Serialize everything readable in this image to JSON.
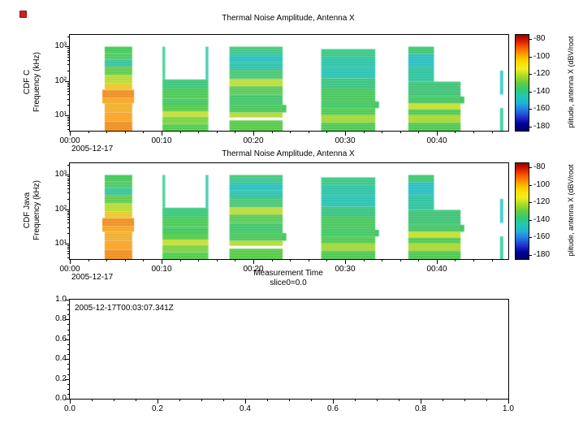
{
  "figure": {
    "background": "#ffffff",
    "marker_color": "#cc2222"
  },
  "chart_data": [
    {
      "type": "heatmap",
      "title": "Thermal Noise Amplitude, Antenna X",
      "panel_label": "CDF C",
      "ylabel": "Frequency (kHz)",
      "x_start_date": "2005-12-17",
      "time_range_min": [
        0,
        47.8
      ],
      "x_ticks": [
        {
          "t": 0,
          "label": "00:00"
        },
        {
          "t": 10,
          "label": "00:10"
        },
        {
          "t": 20,
          "label": "00:20"
        },
        {
          "t": 30,
          "label": "00:30"
        },
        {
          "t": 40,
          "label": "00:40"
        }
      ],
      "freq_range_khz": [
        3.5,
        2200
      ],
      "y_scale": "log",
      "y_ticks": [
        {
          "f": 1000,
          "label": "10³"
        },
        {
          "f": 100,
          "label": "10²"
        },
        {
          "f": 10,
          "label": "10¹"
        }
      ],
      "colorbar": {
        "label": "plitude, antenna X (dBV/root",
        "ticks": [
          -80,
          -100,
          -120,
          -140,
          -160,
          -180
        ],
        "range": [
          -75,
          -185
        ],
        "gradient": [
          "#990000",
          "#dd2200",
          "#ff6600",
          "#ffaa00",
          "#ffdd00",
          "#eeee22",
          "#aadd22",
          "#66cc44",
          "#33c878",
          "#22c8b0",
          "#22b0d8",
          "#2277e6",
          "#2233cc",
          "#000099",
          "#000066"
        ]
      },
      "bursts": [
        {
          "t": [
            3.8,
            6.8
          ],
          "bands": [
            {
              "f": [
                3.5,
                6.5
              ],
              "color": "#f09020"
            },
            {
              "f": [
                6.5,
                12
              ],
              "color": "#f8a428"
            },
            {
              "f": [
                12,
                22
              ],
              "color": "#f0b030"
            },
            {
              "f": [
                22,
                32
              ],
              "t": [
                3.55,
                7.0
              ],
              "color": "#f8a820"
            },
            {
              "f": [
                32,
                55
              ],
              "t": [
                3.55,
                7.0
              ],
              "color": "#f09028"
            },
            {
              "f": [
                55,
                85
              ],
              "color": "#ecc82c"
            },
            {
              "f": [
                85,
                150
              ],
              "color": "#b8dc34"
            },
            {
              "f": [
                150,
                260
              ],
              "color": "#64cc50"
            },
            {
              "f": [
                260,
                420
              ],
              "color": "#38c49c"
            },
            {
              "f": [
                420,
                640
              ],
              "color": "#4ccc64"
            },
            {
              "f": [
                640,
                1000
              ],
              "color": "#44c858"
            }
          ]
        },
        {
          "t": [
            10.1,
            15.1
          ],
          "bands": [
            {
              "f": [
                3.5,
                5.5
              ],
              "color": "#54cc50"
            },
            {
              "f": [
                5.5,
                9
              ],
              "color": "#7cd444"
            },
            {
              "f": [
                9,
                13
              ],
              "color": "#c4e034"
            },
            {
              "f": [
                13,
                19
              ],
              "color": "#58cc4c"
            },
            {
              "f": [
                19,
                30
              ],
              "color": "#44c860"
            },
            {
              "f": [
                30,
                60
              ],
              "color": "#4ccc58"
            },
            {
              "f": [
                60,
                110
              ],
              "color": "#3cc87c"
            },
            {
              "f": [
                110,
                1000
              ],
              "t": [
                10.1,
                10.4
              ],
              "color": "#4cd09c"
            },
            {
              "f": [
                110,
                1000
              ],
              "t": [
                14.8,
                15.1
              ],
              "color": "#40ccac"
            }
          ]
        },
        {
          "t": [
            17.4,
            23.2
          ],
          "bands": [
            {
              "f": [
                3.5,
                7
              ],
              "color": "#58cc48"
            },
            {
              "f": [
                8.5,
                12
              ],
              "color": "#b4dc38"
            },
            {
              "f": [
                12,
                20
              ],
              "t": [
                17.4,
                23.6
              ],
              "color": "#4cc85c"
            },
            {
              "f": [
                20,
                40
              ],
              "color": "#44c86c"
            },
            {
              "f": [
                40,
                70
              ],
              "color": "#5ccc58"
            },
            {
              "f": [
                70,
                115
              ],
              "color": "#bcdc40"
            },
            {
              "f": [
                115,
                210
              ],
              "color": "#4cc878"
            },
            {
              "f": [
                210,
                360
              ],
              "color": "#30c4ac"
            },
            {
              "f": [
                360,
                560
              ],
              "color": "#2cc0c0"
            },
            {
              "f": [
                560,
                820
              ],
              "color": "#3cc894"
            },
            {
              "f": [
                820,
                1000
              ],
              "color": "#4cc870"
            }
          ]
        },
        {
          "t": [
            27.4,
            33.3
          ],
          "bands": [
            {
              "f": [
                3.5,
                6
              ],
              "color": "#50c854"
            },
            {
              "f": [
                6,
                10
              ],
              "color": "#a4d83c"
            },
            {
              "f": [
                10,
                16
              ],
              "color": "#50cc50"
            },
            {
              "f": [
                16,
                25
              ],
              "t": [
                27.4,
                33.7
              ],
              "color": "#44c868"
            },
            {
              "f": [
                25,
                60
              ],
              "color": "#4cc860"
            },
            {
              "f": [
                60,
                120
              ],
              "color": "#3cc483"
            },
            {
              "f": [
                120,
                260
              ],
              "color": "#2cc4b4"
            },
            {
              "f": [
                260,
                500
              ],
              "color": "#30c4a8"
            },
            {
              "f": [
                500,
                850
              ],
              "color": "#3cc888"
            }
          ]
        },
        {
          "t": [
            36.9,
            42.6
          ],
          "bands": [
            {
              "f": [
                3.5,
                6
              ],
              "color": "#50c854"
            },
            {
              "f": [
                6,
                10
              ],
              "color": "#acd834"
            },
            {
              "f": [
                10,
                15
              ],
              "color": "#50cc50"
            },
            {
              "f": [
                15,
                22
              ],
              "color": "#c8e030"
            },
            {
              "f": [
                22,
                35
              ],
              "t": [
                36.9,
                43.0
              ],
              "color": "#44c864"
            },
            {
              "f": [
                35,
                95
              ],
              "color": "#40c478"
            },
            {
              "f": [
                95,
                260
              ],
              "t": [
                36.9,
                39.7
              ],
              "color": "#30c4a0"
            },
            {
              "f": [
                260,
                620
              ],
              "t": [
                36.9,
                39.7
              ],
              "color": "#2cc0c0"
            },
            {
              "f": [
                620,
                1000
              ],
              "t": [
                36.9,
                39.7
              ],
              "color": "#40c870"
            }
          ]
        },
        {
          "t": [
            46.9,
            47.25
          ],
          "bands": [
            {
              "f": [
                3.5,
                16
              ],
              "color": "#3cd0a4"
            },
            {
              "f": [
                40,
                200
              ],
              "color": "#38d0c8"
            }
          ]
        }
      ]
    },
    {
      "type": "heatmap",
      "title": "Thermal Noise Amplitude, Antenna X",
      "panel_label": "CDF Java",
      "ylabel": "Frequency (kHz)",
      "xlabel": "Measurement Time",
      "slice": "slice0=0.0",
      "x_start_date": "2005-12-17",
      "time_range_min": [
        0,
        47.8
      ],
      "x_ticks": [
        {
          "t": 0,
          "label": "00:00"
        },
        {
          "t": 10,
          "label": "00:10"
        },
        {
          "t": 20,
          "label": "00:20"
        },
        {
          "t": 30,
          "label": "00:30"
        },
        {
          "t": 40,
          "label": "00:40"
        }
      ],
      "freq_range_khz": [
        3.5,
        2200
      ],
      "y_scale": "log",
      "y_ticks": [
        {
          "f": 1000,
          "label": "10³"
        },
        {
          "f": 100,
          "label": "10²"
        },
        {
          "f": 10,
          "label": "10¹"
        }
      ],
      "colorbar": {
        "label": "plitude, antenna X (dBV/root",
        "ticks": [
          -80,
          -100,
          -120,
          -140,
          -160,
          -180
        ],
        "range": [
          -75,
          -185
        ],
        "gradient": [
          "#990000",
          "#dd2200",
          "#ff6600",
          "#ffaa00",
          "#ffdd00",
          "#eeee22",
          "#aadd22",
          "#66cc44",
          "#33c878",
          "#22c8b0",
          "#22b0d8",
          "#2277e6",
          "#2233cc",
          "#000099",
          "#000066"
        ]
      },
      "bursts_same_as": 0
    },
    {
      "type": "empty",
      "annotation": "2005-12-17T00:03:07.341Z",
      "xlim": [
        0,
        1
      ],
      "ylim": [
        0,
        1
      ],
      "x_ticks": [
        0,
        0.2,
        0.4,
        0.6,
        0.8,
        1
      ],
      "y_ticks": [
        0,
        0.2,
        0.4,
        0.6,
        0.8,
        1
      ]
    }
  ]
}
